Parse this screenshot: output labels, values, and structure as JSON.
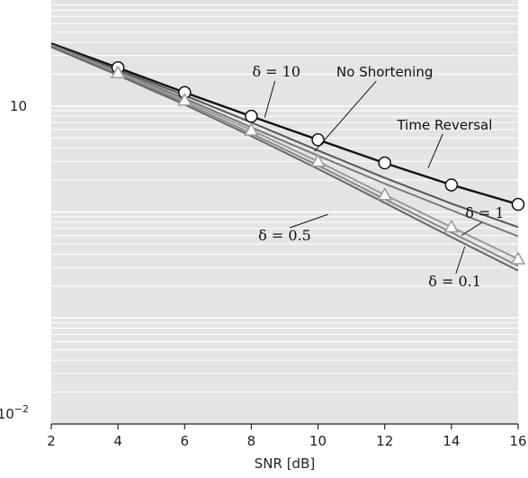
{
  "chart_data": {
    "type": "line",
    "title": "",
    "xlabel": "SNR [dB]",
    "ylabel": "",
    "x": [
      2,
      4,
      6,
      8,
      10,
      12,
      14,
      16
    ],
    "xlim": [
      2,
      16
    ],
    "x_ticks": [
      "2",
      "4",
      "6",
      "8",
      "10",
      "12",
      "14",
      "16"
    ],
    "y_scale": "log",
    "ylim": [
      0.01,
      100
    ],
    "y_tick_labels": {
      "ten": "10",
      "minus2_base": "10",
      "minus2_exp": "−2"
    },
    "grid": "horizontal",
    "colors": {
      "background": "#e4e4e4",
      "grid": "#ffffff",
      "dark": "#111111",
      "mid": "#555555",
      "light": "#9a9a9a",
      "marker_fill": "#ffffff"
    },
    "series": [
      {
        "name": "Time Reversal",
        "values": [
          39,
          23,
          13.4,
          8.0,
          4.8,
          2.9,
          1.8,
          1.18
        ],
        "markers": "circle",
        "color": "#111111"
      },
      {
        "name": "No Shortening",
        "values": [
          38,
          22,
          12.6,
          7.0,
          3.8,
          2.1,
          1.2,
          0.72
        ],
        "markers": "none",
        "color": "#555555"
      },
      {
        "name": "δ = 10",
        "values": [
          37.5,
          21.3,
          11.8,
          6.3,
          3.4,
          1.85,
          1.04,
          0.59
        ],
        "markers": "none",
        "color": "#777777"
      },
      {
        "name": "δ = 1",
        "values": [
          37,
          20.5,
          11.3,
          5.9,
          3.0,
          1.45,
          0.72,
          0.36
        ],
        "markers": "triangle",
        "color": "#9a9a9a"
      },
      {
        "name": "δ = 0.5",
        "values": [
          36.5,
          20,
          10.8,
          5.5,
          2.75,
          1.32,
          0.64,
          0.31
        ],
        "markers": "none",
        "color": "#888888"
      },
      {
        "name": "δ = 0.1",
        "values": [
          36,
          19.5,
          10.3,
          5.2,
          2.55,
          1.22,
          0.58,
          0.28
        ],
        "markers": "none",
        "color": "#666666"
      }
    ],
    "annotations": [
      {
        "text": "δ = 10",
        "font": "serif",
        "label_x": 8.75,
        "label_y": 19,
        "point_x": 8.4,
        "point_y": 7.8
      },
      {
        "text": "No Shortening",
        "font": "sans",
        "label_x": 12.0,
        "label_y": 19,
        "point_x": 9.9,
        "point_y": 3.75
      },
      {
        "text": "Time Reversal",
        "font": "sans",
        "label_x": 13.8,
        "label_y": 6.0,
        "point_x": 13.3,
        "point_y": 2.6
      },
      {
        "text": "δ = 1",
        "font": "serif",
        "label_x": 15.0,
        "label_y": 0.88,
        "point_x": 14.3,
        "point_y": 0.6
      },
      {
        "text": "δ = 0.5",
        "font": "serif",
        "label_x": 9.0,
        "label_y": 0.54,
        "point_x": 10.3,
        "point_y": 0.95
      },
      {
        "text": "δ = 0.1",
        "font": "serif",
        "label_x": 14.1,
        "label_y": 0.2,
        "point_x": 14.4,
        "point_y": 0.47
      }
    ]
  }
}
